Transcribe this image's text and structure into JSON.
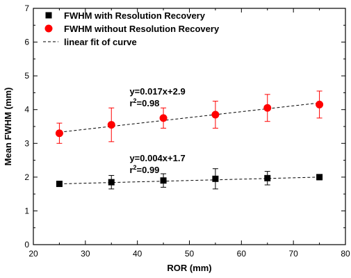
{
  "chart_data": {
    "type": "scatter",
    "title": "",
    "xlabel": "ROR (mm)",
    "ylabel": "Mean FWHM (mm)",
    "xlim": [
      20,
      80
    ],
    "ylim": [
      0,
      7
    ],
    "x_ticks": [
      20,
      30,
      40,
      50,
      60,
      70,
      80
    ],
    "y_ticks": [
      0,
      1,
      2,
      3,
      4,
      5,
      6,
      7
    ],
    "grid": false,
    "legend_position": "top-left",
    "series": [
      {
        "name": "FWHM with Resolution Recovery",
        "marker": "square",
        "color": "#000000",
        "errorbar_color": "#000000",
        "x": [
          25,
          35,
          45,
          55,
          65,
          75
        ],
        "y": [
          1.8,
          1.85,
          1.9,
          1.95,
          1.97,
          2.0
        ],
        "err": [
          0.08,
          0.2,
          0.2,
          0.3,
          0.2,
          0.08
        ]
      },
      {
        "name": "FWHM without Resolution Recovery",
        "marker": "circle",
        "color": "#ff0000",
        "errorbar_color": "#ff0000",
        "x": [
          25,
          35,
          45,
          55,
          65,
          75
        ],
        "y": [
          3.3,
          3.55,
          3.75,
          3.85,
          4.05,
          4.15
        ],
        "err": [
          0.3,
          0.5,
          0.3,
          0.4,
          0.4,
          0.4
        ]
      }
    ],
    "fits": [
      {
        "name": "linear fit of curve",
        "style": "dashed",
        "color": "#000000",
        "x": [
          25,
          75
        ],
        "y": [
          1.8,
          2.0
        ]
      },
      {
        "style": "dashed",
        "color": "#000000",
        "x": [
          25,
          75
        ],
        "y": [
          3.33,
          4.2
        ]
      }
    ],
    "annotations": [
      {
        "eq": "y=0.017x+2.9",
        "r2_prefix": "r",
        "r2_sup": "2",
        "r2_value": "=0.98",
        "at": [
          38.5,
          4.45
        ]
      },
      {
        "eq": "y=0.004x+1.7",
        "r2_prefix": "r",
        "r2_sup": "2",
        "r2_value": "=0.99",
        "at": [
          38.5,
          2.47
        ]
      }
    ]
  }
}
